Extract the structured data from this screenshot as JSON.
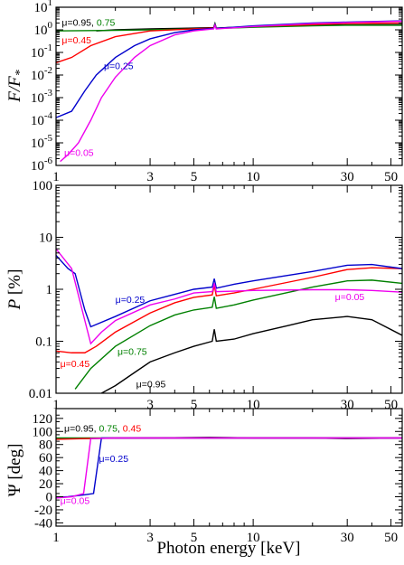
{
  "chart_data": [
    {
      "type": "line",
      "ylabel": "F/F*",
      "ylabel_parts": {
        "main": "F/F",
        "sub": "*"
      },
      "xscale": "log",
      "yscale": "log",
      "xlim": [
        1,
        57
      ],
      "ylim": [
        1e-06,
        10
      ],
      "x_ticks": [
        1,
        3,
        5,
        10,
        30,
        50
      ],
      "x_tick_labels": [
        "1",
        "3",
        "5",
        "10",
        "30",
        "50"
      ],
      "y_ticks": [
        1e-06,
        1e-05,
        0.0001,
        0.001,
        0.01,
        0.1,
        1,
        10
      ],
      "y_tick_labels": [
        {
          "base": "10",
          "exp": "-6"
        },
        {
          "base": "10",
          "exp": "-5"
        },
        {
          "base": "10",
          "exp": "-4"
        },
        {
          "base": "10",
          "exp": "-3"
        },
        {
          "base": "10",
          "exp": "-2"
        },
        {
          "base": "10",
          "exp": "-1"
        },
        {
          "base": "10",
          "exp": "0"
        },
        {
          "base": "10",
          "exp": "1"
        }
      ],
      "grid": false,
      "series": [
        {
          "name": "μ=0.95",
          "color": "#000000",
          "points": [
            [
              1.6,
              0.9
            ],
            [
              2,
              1.0
            ],
            [
              3,
              1.1
            ],
            [
              5,
              1.2
            ],
            [
              6.3,
              1.25
            ],
            [
              6.4,
              1.9
            ],
            [
              6.5,
              1.2
            ],
            [
              10,
              1.4
            ],
            [
              20,
              1.6
            ],
            [
              30,
              1.65
            ],
            [
              57,
              1.7
            ]
          ]
        },
        {
          "name": "μ=0.75",
          "color": "#008000",
          "points": [
            [
              1,
              0.9
            ],
            [
              2,
              0.95
            ],
            [
              3,
              1.0
            ],
            [
              5,
              1.1
            ],
            [
              6.3,
              1.15
            ],
            [
              6.4,
              1.8
            ],
            [
              6.5,
              1.15
            ],
            [
              10,
              1.3
            ],
            [
              20,
              1.5
            ],
            [
              30,
              1.6
            ],
            [
              57,
              1.6
            ]
          ]
        },
        {
          "name": "μ=0.45",
          "color": "#ff0000",
          "points": [
            [
              1,
              0.035
            ],
            [
              1.2,
              0.06
            ],
            [
              1.5,
              0.2
            ],
            [
              2,
              0.5
            ],
            [
              3,
              0.9
            ],
            [
              5,
              1.1
            ],
            [
              6.3,
              1.2
            ],
            [
              6.4,
              1.7
            ],
            [
              6.5,
              1.15
            ],
            [
              10,
              1.4
            ],
            [
              20,
              1.7
            ],
            [
              30,
              1.9
            ],
            [
              57,
              2.0
            ]
          ]
        },
        {
          "name": "μ=0.25",
          "color": "#0000cc",
          "points": [
            [
              1,
              0.00013
            ],
            [
              1.2,
              0.00025
            ],
            [
              1.4,
              0.002
            ],
            [
              1.6,
              0.01
            ],
            [
              2,
              0.06
            ],
            [
              2.5,
              0.2
            ],
            [
              3,
              0.4
            ],
            [
              4,
              0.75
            ],
            [
              5,
              1.0
            ],
            [
              6.3,
              1.15
            ],
            [
              6.4,
              1.7
            ],
            [
              6.5,
              1.15
            ],
            [
              10,
              1.5
            ],
            [
              20,
              2.0
            ],
            [
              30,
              2.2
            ],
            [
              57,
              2.5
            ]
          ]
        },
        {
          "name": "μ=0.05",
          "color": "#ee00ee",
          "points": [
            [
              1.05,
              1.5e-06
            ],
            [
              1.15,
              3e-06
            ],
            [
              1.3,
              1e-05
            ],
            [
              1.5,
              0.0001
            ],
            [
              1.7,
              0.001
            ],
            [
              2,
              0.008
            ],
            [
              2.5,
              0.06
            ],
            [
              3,
              0.2
            ],
            [
              4,
              0.6
            ],
            [
              5,
              0.9
            ],
            [
              6.3,
              1.1
            ],
            [
              6.4,
              1.6
            ],
            [
              6.5,
              1.1
            ],
            [
              10,
              1.4
            ],
            [
              20,
              1.9
            ],
            [
              30,
              2.1
            ],
            [
              57,
              2.4
            ]
          ]
        }
      ],
      "annotations": [
        {
          "text": "μ=0.95",
          "color": "#000000",
          "x": 1.07,
          "y": 1.5
        },
        {
          "text": ", ",
          "color": "#000000"
        },
        {
          "text": "0.75",
          "color": "#008000"
        },
        {
          "text": "μ=0.45",
          "color": "#ff0000",
          "x": 1.07,
          "y": 0.25
        },
        {
          "text": "μ=0.25",
          "color": "#0000cc",
          "x": 1.75,
          "y": 0.018
        },
        {
          "text": "μ=0.05",
          "color": "#ee00ee",
          "x": 1.1,
          "y": 2.6e-06
        }
      ]
    },
    {
      "type": "line",
      "ylabel": "P [%]",
      "ylabel_parts": {
        "main": "P",
        "unit": " [%]"
      },
      "xscale": "log",
      "yscale": "log",
      "xlim": [
        1,
        57
      ],
      "ylim": [
        0.01,
        100
      ],
      "x_ticks": [
        1,
        3,
        5,
        10,
        30,
        50
      ],
      "x_tick_labels": [
        "1",
        "3",
        "5",
        "10",
        "30",
        "50"
      ],
      "y_ticks": [
        0.01,
        0.1,
        1,
        10,
        100
      ],
      "y_tick_labels": [
        "0.01",
        "0.1",
        "1",
        "10",
        "100"
      ],
      "grid": false,
      "series": [
        {
          "name": "μ=0.95",
          "color": "#000000",
          "points": [
            [
              1.7,
              0.01
            ],
            [
              2,
              0.014
            ],
            [
              2.5,
              0.025
            ],
            [
              3,
              0.04
            ],
            [
              4,
              0.06
            ],
            [
              5,
              0.08
            ],
            [
              6.2,
              0.1
            ],
            [
              6.35,
              0.17
            ],
            [
              6.5,
              0.1
            ],
            [
              8,
              0.11
            ],
            [
              10,
              0.14
            ],
            [
              15,
              0.2
            ],
            [
              20,
              0.26
            ],
            [
              30,
              0.3
            ],
            [
              40,
              0.26
            ],
            [
              57,
              0.13
            ]
          ]
        },
        {
          "name": "μ=0.75",
          "color": "#008000",
          "points": [
            [
              1.25,
              0.012
            ],
            [
              1.5,
              0.03
            ],
            [
              2,
              0.08
            ],
            [
              3,
              0.2
            ],
            [
              4,
              0.32
            ],
            [
              5,
              0.4
            ],
            [
              6.2,
              0.45
            ],
            [
              6.35,
              0.72
            ],
            [
              6.5,
              0.43
            ],
            [
              8,
              0.5
            ],
            [
              10,
              0.62
            ],
            [
              20,
              1.1
            ],
            [
              30,
              1.45
            ],
            [
              40,
              1.5
            ],
            [
              57,
              1.3
            ]
          ]
        },
        {
          "name": "μ=0.45",
          "color": "#ff0000",
          "points": [
            [
              1,
              0.065
            ],
            [
              1.2,
              0.06
            ],
            [
              1.4,
              0.06
            ],
            [
              1.6,
              0.08
            ],
            [
              2,
              0.15
            ],
            [
              3,
              0.35
            ],
            [
              4,
              0.55
            ],
            [
              5,
              0.7
            ],
            [
              6.2,
              0.78
            ],
            [
              6.35,
              1.2
            ],
            [
              6.5,
              0.75
            ],
            [
              8,
              0.85
            ],
            [
              10,
              1.0
            ],
            [
              20,
              1.7
            ],
            [
              30,
              2.4
            ],
            [
              40,
              2.6
            ],
            [
              57,
              2.5
            ]
          ]
        },
        {
          "name": "μ=0.25",
          "color": "#0000cc",
          "points": [
            [
              1,
              4.5
            ],
            [
              1.15,
              2.5
            ],
            [
              1.25,
              2.0
            ],
            [
              1.4,
              0.4
            ],
            [
              1.5,
              0.19
            ],
            [
              2,
              0.3
            ],
            [
              3,
              0.6
            ],
            [
              4,
              0.8
            ],
            [
              5,
              1.0
            ],
            [
              6.2,
              1.1
            ],
            [
              6.35,
              1.6
            ],
            [
              6.5,
              1.05
            ],
            [
              8,
              1.25
            ],
            [
              10,
              1.45
            ],
            [
              20,
              2.2
            ],
            [
              30,
              2.9
            ],
            [
              40,
              3.0
            ],
            [
              57,
              2.5
            ]
          ]
        },
        {
          "name": "μ=0.05",
          "color": "#ee00ee",
          "points": [
            [
              1,
              6
            ],
            [
              1.2,
              2.5
            ],
            [
              1.4,
              0.25
            ],
            [
              1.5,
              0.09
            ],
            [
              1.7,
              0.15
            ],
            [
              2,
              0.25
            ],
            [
              3,
              0.5
            ],
            [
              4,
              0.65
            ],
            [
              5,
              0.85
            ],
            [
              6.2,
              0.9
            ],
            [
              6.35,
              1.3
            ],
            [
              6.5,
              0.9
            ],
            [
              8,
              0.92
            ],
            [
              10,
              0.95
            ],
            [
              20,
              0.98
            ],
            [
              30,
              0.98
            ],
            [
              40,
              0.95
            ],
            [
              57,
              0.88
            ]
          ]
        }
      ],
      "annotations": [
        {
          "text": "μ=0.25",
          "color": "#0000cc",
          "x": 2.0,
          "y": 0.55
        },
        {
          "text": "μ=0.05",
          "color": "#ee00ee",
          "x": 26,
          "y": 0.62
        },
        {
          "text": "μ=0.75",
          "color": "#008000",
          "x": 2.05,
          "y": 0.055
        },
        {
          "text": "μ=0.45",
          "color": "#ff0000",
          "x": 1.05,
          "y": 0.032
        },
        {
          "text": "μ=0.95",
          "color": "#000000",
          "x": 2.55,
          "y": 0.013
        }
      ]
    },
    {
      "type": "line",
      "ylabel": "Ψ [deg]",
      "xlabel": "Photon energy [keV]",
      "xscale": "log",
      "yscale": "linear",
      "xlim": [
        1,
        57
      ],
      "ylim": [
        -45,
        135
      ],
      "x_ticks": [
        1,
        3,
        5,
        10,
        30,
        50
      ],
      "x_tick_labels": [
        "1",
        "3",
        "5",
        "10",
        "30",
        "50"
      ],
      "y_ticks": [
        -40,
        -20,
        0,
        20,
        40,
        60,
        80,
        100,
        120
      ],
      "y_tick_labels": [
        "-40",
        "-20",
        "0",
        "20",
        "40",
        "60",
        "80",
        "100",
        "120"
      ],
      "grid": false,
      "series": [
        {
          "name": "μ=0.95",
          "color": "#000000",
          "points": [
            [
              1,
              89
            ],
            [
              3,
              90
            ],
            [
              6,
              91
            ],
            [
              10,
              90
            ],
            [
              20,
              90
            ],
            [
              30,
              89
            ],
            [
              57,
              90
            ]
          ]
        },
        {
          "name": "μ=0.75",
          "color": "#008000",
          "points": [
            [
              1,
              90
            ],
            [
              57,
              90
            ]
          ]
        },
        {
          "name": "μ=0.45",
          "color": "#ff0000",
          "points": [
            [
              1,
              88
            ],
            [
              1.4,
              89
            ],
            [
              2,
              90
            ],
            [
              57,
              90
            ]
          ]
        },
        {
          "name": "μ=0.25",
          "color": "#0000cc",
          "points": [
            [
              1,
              -1
            ],
            [
              1.15,
              0
            ],
            [
              1.4,
              3
            ],
            [
              1.55,
              5
            ],
            [
              1.7,
              90
            ],
            [
              3,
              90
            ],
            [
              57,
              90
            ]
          ]
        },
        {
          "name": "μ=0.05",
          "color": "#ee00ee",
          "points": [
            [
              1,
              -2
            ],
            [
              1.2,
              0
            ],
            [
              1.38,
              5
            ],
            [
              1.5,
              89
            ],
            [
              2,
              90
            ],
            [
              57,
              90
            ]
          ]
        }
      ],
      "annotations": [
        {
          "text": "μ=0.95",
          "color": "#000000",
          "x": 1.1,
          "y": 100
        },
        {
          "text": ", ",
          "color": "#000000"
        },
        {
          "text": "0.75",
          "color": "#008000"
        },
        {
          "text": ", ",
          "color": "#000000"
        },
        {
          "text": "0.45",
          "color": "#ff0000"
        },
        {
          "text": "μ=0.25",
          "color": "#0000cc",
          "x": 1.65,
          "y": 53
        },
        {
          "text": "μ=0.05",
          "color": "#ee00ee",
          "x": 1.05,
          "y": -11
        }
      ]
    }
  ]
}
